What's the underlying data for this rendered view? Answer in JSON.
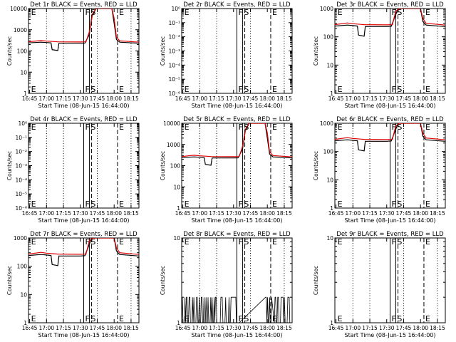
{
  "chart_data": [
    {
      "title": "Det 1r BLACK = Events, RED = LLD",
      "type": "line",
      "log": true,
      "ylim": [
        1,
        10000
      ],
      "ylabel": "Counts/sec",
      "xlabel": "Start Time (08-Jun-15 16:44:00)",
      "yticks": [
        "1",
        "10",
        "100",
        "1000",
        "10000"
      ],
      "xticks": [
        "16:45",
        "17:00",
        "17:15",
        "17:30",
        "17:45",
        "18:00",
        "18:15"
      ],
      "markers": [
        "E",
        "F",
        "S",
        "E"
      ],
      "black": "ev",
      "red": "ev"
    },
    {
      "title": "Det 2r BLACK = Events, RED = LLD",
      "type": "line",
      "log": true,
      "ylim": [
        1e-06,
        1
      ],
      "ylabel": "Counts/sec",
      "xlabel": "Start Time (08-Jun-15 16:44:00)",
      "yticks": [
        "10⁰",
        "10⁻¹",
        "10⁻²",
        "10⁻³",
        "10⁻⁴",
        "10⁻⁵",
        "10⁻⁶"
      ],
      "xticks": [
        "16:45",
        "17:00",
        "17:15",
        "17:30",
        "17:45",
        "18:00",
        "18:15"
      ],
      "markers": [
        "E",
        "F",
        "S",
        "E"
      ],
      "black": "none",
      "red": "none"
    },
    {
      "title": "Det 3r BLACK = Events, RED = LLD",
      "type": "line",
      "log": true,
      "ylim": [
        1,
        1000
      ],
      "ylabel": "Counts/sec",
      "xlabel": "Start Time (08-Jun-15 16:44:00)",
      "yticks": [
        "1",
        "10",
        "100",
        "1000"
      ],
      "xticks": [
        "16:45",
        "17:00",
        "17:15",
        "17:30",
        "17:45",
        "18:00",
        "18:15"
      ],
      "markers": [
        "E",
        "F",
        "S",
        "E"
      ],
      "black": "ev",
      "red": "ev"
    },
    {
      "title": "Det 4r BLACK = Events, RED = LLD",
      "type": "line",
      "log": true,
      "ylim": [
        1e-06,
        1
      ],
      "ylabel": "Counts/sec",
      "xlabel": "Start Time (08-Jun-15 16:44:00)",
      "yticks": [
        "10⁰",
        "10⁻¹",
        "10⁻²",
        "10⁻³",
        "10⁻⁴",
        "10⁻⁵",
        "10⁻⁶"
      ],
      "xticks": [
        "16:45",
        "17:00",
        "17:15",
        "17:30",
        "17:45",
        "18:00",
        "18:15"
      ],
      "markers": [
        "E",
        "F",
        "S",
        "E"
      ],
      "black": "none",
      "red": "none"
    },
    {
      "title": "Det 5r BLACK = Events, RED = LLD",
      "type": "line",
      "log": true,
      "ylim": [
        1,
        10000
      ],
      "ylabel": "Counts/sec",
      "xlabel": "Start Time (08-Jun-15 16:44:00)",
      "yticks": [
        "1",
        "10",
        "100",
        "1000",
        "10000"
      ],
      "xticks": [
        "16:45",
        "17:00",
        "17:15",
        "17:30",
        "17:45",
        "18:00",
        "18:15"
      ],
      "markers": [
        "E",
        "F",
        "S",
        "E"
      ],
      "black": "ev",
      "red": "ev"
    },
    {
      "title": "Det 6r BLACK = Events, RED = LLD",
      "type": "line",
      "log": true,
      "ylim": [
        1,
        1000
      ],
      "ylabel": "Counts/sec",
      "xlabel": "Start Time (08-Jun-15 16:44:00)",
      "yticks": [
        "1",
        "10",
        "100",
        "1000"
      ],
      "xticks": [
        "16:45",
        "17:00",
        "17:15",
        "17:30",
        "17:45",
        "18:00",
        "18:15"
      ],
      "markers": [
        "E",
        "F",
        "S",
        "E"
      ],
      "black": "ev",
      "red": "ev"
    },
    {
      "title": "Det 7r BLACK = Events, RED = LLD",
      "type": "line",
      "log": true,
      "ylim": [
        1,
        1000
      ],
      "ylabel": "Counts/sec",
      "xlabel": "Start Time (08-Jun-15 16:44:00)",
      "yticks": [
        "1",
        "10",
        "100",
        "1000"
      ],
      "xticks": [
        "16:45",
        "17:00",
        "17:15",
        "17:30",
        "17:45",
        "18:00",
        "18:15"
      ],
      "markers": [
        "E",
        "F",
        "S",
        "E"
      ],
      "black": "ev",
      "red": "ev"
    },
    {
      "title": "Det 8r BLACK = Events, RED = LLD",
      "type": "line",
      "log": true,
      "ylim": [
        1,
        10
      ],
      "ylabel": "Counts/sec",
      "xlabel": "Start Time (08-Jun-15 16:44:00)",
      "yticks": [
        "1",
        "10"
      ],
      "xticks": [
        "16:45",
        "17:00",
        "17:15",
        "17:30",
        "17:45",
        "18:00",
        "18:15"
      ],
      "markers": [
        "E",
        "F",
        "S",
        "E"
      ],
      "black": "noise",
      "red": "none"
    },
    {
      "title": "Det 9r BLACK = Events, RED = LLD",
      "type": "line",
      "log": true,
      "ylim": [
        1,
        10
      ],
      "ylabel": "Counts/sec",
      "xlabel": "Start Time (08-Jun-15 16:44:00)",
      "yticks": [
        "1",
        "10"
      ],
      "xticks": [
        "16:45",
        "17:00",
        "17:15",
        "17:30",
        "17:45",
        "18:00",
        "18:15"
      ],
      "markers": [
        "E",
        "F",
        "S",
        "E"
      ],
      "black": "none",
      "red": "none"
    }
  ],
  "time_axis": {
    "start": "16:44",
    "end": "18:22",
    "dotted_at": [
      "17:00",
      "17:15",
      "17:45",
      "18:15"
    ],
    "solid_at": [
      "17:33",
      "17:38"
    ],
    "dashed_at": [
      "17:40",
      "18:03"
    ],
    "marker_at": [
      "16:45",
      "17:33",
      "17:38",
      "18:03"
    ]
  },
  "series_colors": {
    "black": "#000000",
    "red": "#e00000"
  },
  "event_profile": {
    "baseline": 230,
    "black_points": [
      [
        "16:44",
        240
      ],
      [
        "16:55",
        260
      ],
      [
        "17:00",
        250
      ],
      [
        "17:04",
        240
      ],
      [
        "17:05",
        115
      ],
      [
        "17:10",
        105
      ],
      [
        "17:11",
        230
      ],
      [
        "17:30",
        230
      ],
      [
        "17:34",
        235
      ],
      [
        "17:38",
        600
      ],
      [
        "17:40",
        4000
      ],
      [
        "17:44",
        15000
      ],
      [
        "17:58",
        15000
      ],
      [
        "18:00",
        2000
      ],
      [
        "18:02",
        350
      ],
      [
        "18:05",
        260
      ],
      [
        "18:22",
        230
      ]
    ],
    "red_points": [
      [
        "16:44",
        270
      ],
      [
        "16:55",
        310
      ],
      [
        "17:00",
        290
      ],
      [
        "17:10",
        270
      ],
      [
        "17:30",
        265
      ],
      [
        "17:35",
        270
      ],
      [
        "17:38",
        800
      ],
      [
        "17:41",
        6000
      ],
      [
        "17:44",
        20000
      ],
      [
        "17:58",
        20000
      ],
      [
        "18:00",
        3500
      ],
      [
        "18:02",
        450
      ],
      [
        "18:05",
        300
      ],
      [
        "18:22",
        260
      ]
    ]
  }
}
